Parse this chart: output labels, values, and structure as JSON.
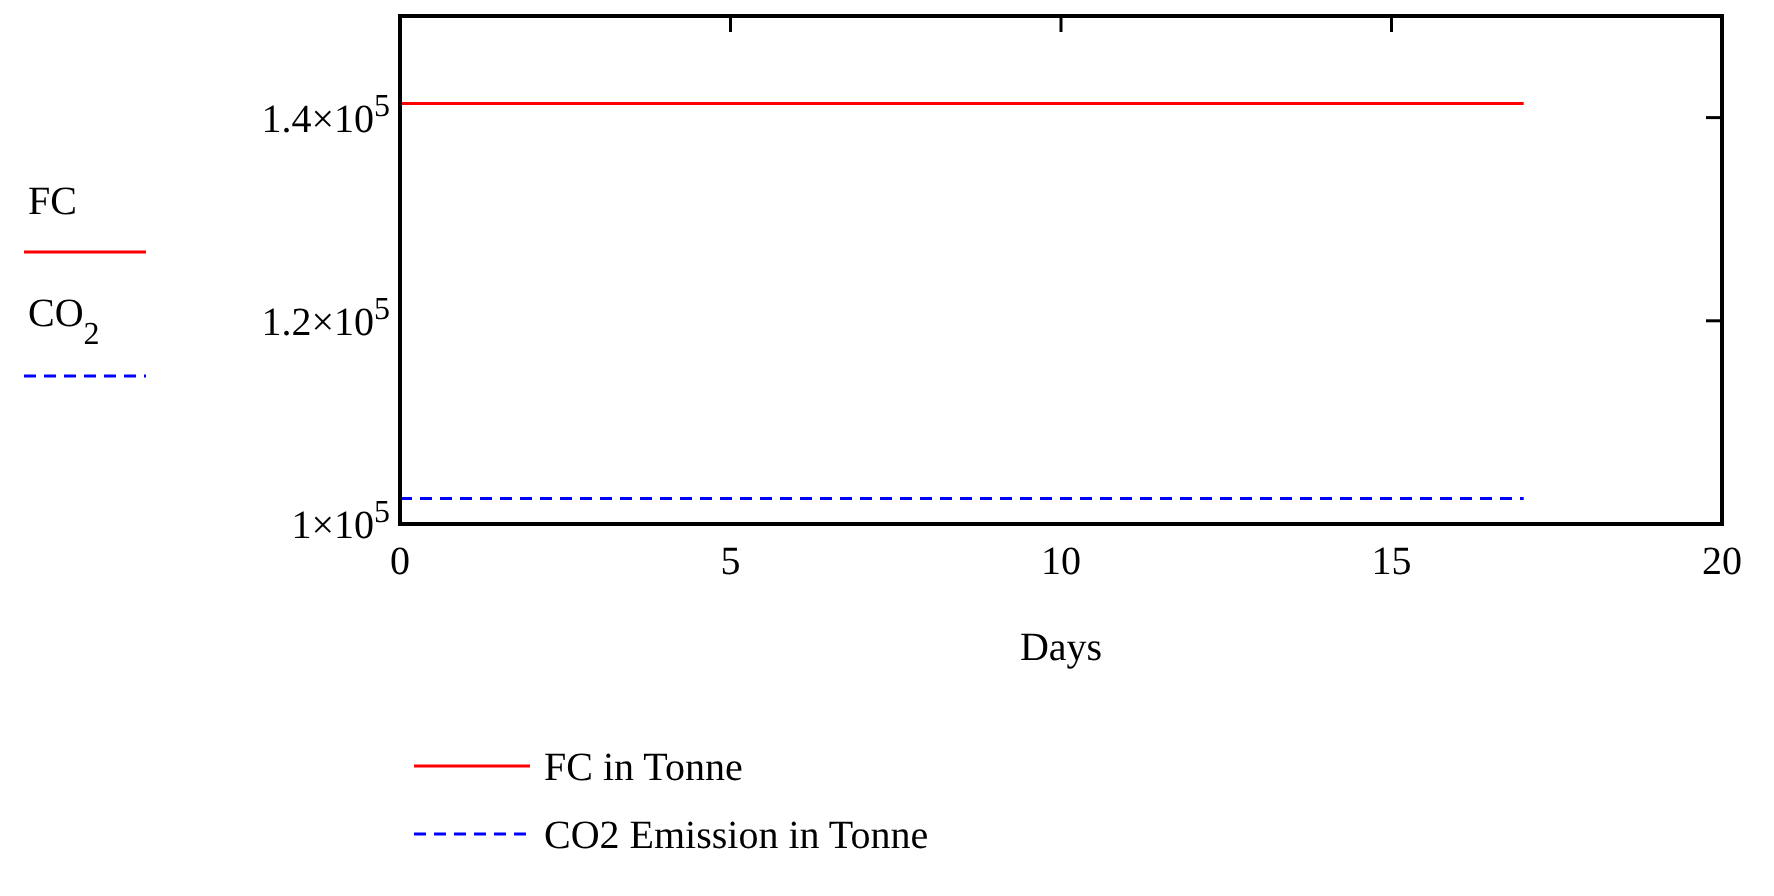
{
  "chart_data": {
    "type": "line",
    "xlabel": "Days",
    "ylabel": "FC CO$_{2}$",
    "xlim": [
      0,
      20
    ],
    "xticks": [
      0,
      5,
      10,
      15,
      20
    ],
    "ylim": [
      100000,
      150000
    ],
    "yticks": [
      {
        "value": 100000,
        "label": "1×10$^{5}$"
      },
      {
        "value": 120000,
        "label": "1.2×10$^{5}$"
      },
      {
        "value": 140000,
        "label": "1.4×10$^{5}$"
      }
    ],
    "x": [
      0,
      17
    ],
    "series": [
      {
        "name": "FC in Tonne",
        "color": "#ff0000",
        "values": [
          141400,
          141400
        ],
        "line_style": "solid"
      },
      {
        "name": "CO2 Emission in Tonne",
        "color": "#0000ff",
        "values": [
          102500,
          102500
        ],
        "line_style": "dashed"
      }
    ],
    "legend": "bottom",
    "grid": false
  }
}
